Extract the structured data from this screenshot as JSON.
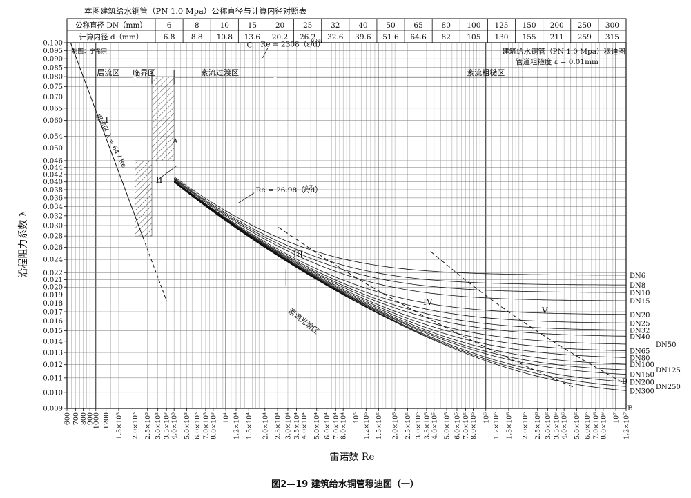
{
  "table": {
    "title": "本图建筑给水铜管（PN 1.0 Mpa）公称直径与计算内径对照表",
    "row1_label": "公称直径 DN（mm）",
    "row2_label": "计算内径 d（mm）",
    "dn": [
      "6",
      "8",
      "10",
      "15",
      "20",
      "25",
      "32",
      "40",
      "50",
      "65",
      "80",
      "100",
      "125",
      "150",
      "200",
      "250",
      "300"
    ],
    "d": [
      "6.8",
      "8.8",
      "10.8",
      "13.6",
      "20.2",
      "26.2",
      "32.6",
      "39.6",
      "51.6",
      "64.6",
      "82",
      "105",
      "130",
      "155",
      "211",
      "259",
      "315"
    ]
  },
  "chart_data": {
    "type": "line",
    "title": "建筑给水铜管（PN 1.0 Mpa）穆迪图",
    "subtitle": "管道粗糙度 ε = 0.01mm",
    "caption": "图2—19  建筑给水铜管穆迪图（一）",
    "author_note": "制图：宁希宗",
    "xlabel": "雷诺数 Re",
    "ylabel": "沿程阻力系数 λ",
    "x_scale": "log",
    "y_scale": "log",
    "xlim": [
      600,
      12000000
    ],
    "ylim": [
      0.009,
      0.1
    ],
    "grid": true,
    "x_tick_labels": [
      "600",
      "700",
      "800",
      "900",
      "1000",
      "1200",
      "1.5×10³",
      "2.0×10³",
      "2.5×10³",
      "3.0×10³",
      "3.5×10³",
      "4.0×10³",
      "5.0×10³",
      "6.0×10³",
      "7.0×10³",
      "8.0×10³",
      "10⁴",
      "1.2×10⁴",
      "1.5×10⁴",
      "2.0×10⁴",
      "2.5×10⁴",
      "3.0×10⁴",
      "3.5×10⁴",
      "4.0×10⁴",
      "5.0×10⁴",
      "6.0×10⁴",
      "7.0×10⁴",
      "8.0×10⁴",
      "10⁵",
      "1.2×10⁵",
      "1.5×10⁵",
      "2.0×10⁵",
      "2.5×10⁵",
      "3.0×10⁵",
      "3.5×10⁵",
      "4.0×10⁵",
      "5.0×10⁵",
      "6.0×10⁵",
      "7.0×10⁵",
      "8.0×10⁵",
      "10⁶",
      "1.2×10⁶",
      "1.5×10⁶",
      "2.0×10⁶",
      "2.5×10⁶",
      "3.0×10⁶",
      "3.5×10⁶",
      "4.0×10⁶",
      "5.0×10⁶",
      "6.0×10⁶",
      "7.0×10⁶",
      "8.0×10⁶",
      "10⁷",
      "1.2×10⁷"
    ],
    "y_ticks": [
      0.009,
      0.01,
      0.011,
      0.012,
      0.013,
      0.014,
      0.015,
      0.016,
      0.017,
      0.018,
      0.019,
      0.02,
      0.021,
      0.022,
      0.024,
      0.026,
      0.028,
      0.03,
      0.032,
      0.034,
      0.036,
      0.038,
      0.04,
      0.042,
      0.044,
      0.046,
      0.05,
      0.054,
      0.06,
      0.065,
      0.07,
      0.075,
      0.08,
      0.085,
      0.09,
      0.095,
      0.1
    ],
    "y_tick_labels": [
      "0.009",
      "0.010",
      "0.011",
      "0.012",
      "0.013",
      "0.014",
      "0.015",
      "0.016",
      "0.017",
      "0.018",
      "0.019",
      "0.020",
      "0.021",
      "0.022",
      "0.024",
      "0.026",
      "0.028",
      "0.030",
      "0.032",
      "0.034",
      "0.036",
      "0.038",
      "0.040",
      "0.042",
      "0.044",
      "0.046",
      "0.050",
      "0.054",
      "0.060",
      "0.065",
      "0.070",
      "0.075",
      "0.080",
      "0.085",
      "0.090",
      "0.095",
      "0.100"
    ],
    "zones": [
      "层流区",
      "临界区",
      "紊流过渡区",
      "紊流粗糙区"
    ],
    "smooth_zone_label": "紊流光滑区",
    "laminar_label": "层流区 λ = 64 / Re",
    "curve_labels": [
      "I",
      "II",
      "III",
      "IV",
      "V"
    ],
    "point_labels": [
      "A",
      "B",
      "C",
      "D"
    ],
    "formula_upper": {
      "prefix": "Re = 2308（ε/d）",
      "exponent": "-0.85"
    },
    "formula_lower": {
      "prefix": "Re = 26.98（ε/d）",
      "exponent": "-8/7"
    },
    "series": [
      {
        "name": "DN6",
        "d_mm": 6.8
      },
      {
        "name": "DN8",
        "d_mm": 8.8
      },
      {
        "name": "DN10",
        "d_mm": 10.8
      },
      {
        "name": "DN15",
        "d_mm": 13.6
      },
      {
        "name": "DN20",
        "d_mm": 20.2
      },
      {
        "name": "DN25",
        "d_mm": 26.2
      },
      {
        "name": "DN32",
        "d_mm": 32.6
      },
      {
        "name": "DN40",
        "d_mm": 39.6
      },
      {
        "name": "DN50",
        "d_mm": 51.6
      },
      {
        "name": "DN65",
        "d_mm": 64.6
      },
      {
        "name": "DN80",
        "d_mm": 82
      },
      {
        "name": "DN100",
        "d_mm": 105
      },
      {
        "name": "DN125",
        "d_mm": 130
      },
      {
        "name": "DN150",
        "d_mm": 155
      },
      {
        "name": "DN200",
        "d_mm": 211
      },
      {
        "name": "DN250",
        "d_mm": 259
      },
      {
        "name": "DN300",
        "d_mm": 315
      }
    ],
    "roughness_mm": 0.01
  }
}
